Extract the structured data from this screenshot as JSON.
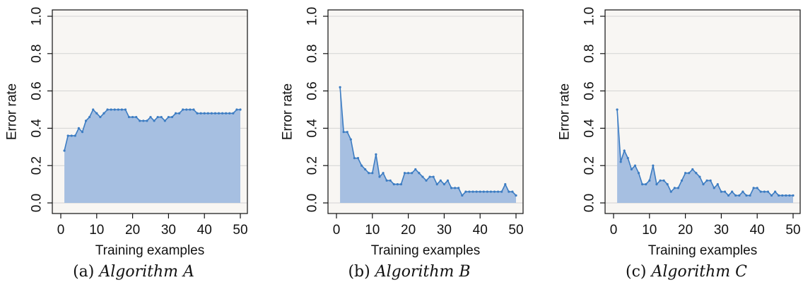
{
  "chart_data": [
    {
      "type": "area",
      "caption_prefix": "(a)",
      "caption_name": "Algorithm A",
      "xlabel": "Training examples",
      "ylabel": "Error rate",
      "xlim": [
        0,
        50
      ],
      "ylim": [
        0,
        1
      ],
      "xticks": [
        0,
        10,
        20,
        30,
        40,
        50
      ],
      "yticks": [
        0.0,
        0.2,
        0.4,
        0.6,
        0.8,
        1.0
      ],
      "grid": true,
      "colors": {
        "fill": "#a6bfe1",
        "line": "#3c7cc2",
        "background": "#f8f6f3"
      },
      "x": [
        1,
        2,
        3,
        4,
        5,
        6,
        7,
        8,
        9,
        10,
        11,
        12,
        13,
        14,
        15,
        16,
        17,
        18,
        19,
        20,
        21,
        22,
        23,
        24,
        25,
        26,
        27,
        28,
        29,
        30,
        31,
        32,
        33,
        34,
        35,
        36,
        37,
        38,
        39,
        40,
        41,
        42,
        43,
        44,
        45,
        46,
        47,
        48,
        49,
        50
      ],
      "y": [
        0.28,
        0.36,
        0.36,
        0.36,
        0.4,
        0.38,
        0.44,
        0.46,
        0.5,
        0.48,
        0.46,
        0.48,
        0.5,
        0.5,
        0.5,
        0.5,
        0.5,
        0.5,
        0.46,
        0.46,
        0.46,
        0.44,
        0.44,
        0.44,
        0.46,
        0.44,
        0.46,
        0.46,
        0.44,
        0.46,
        0.46,
        0.48,
        0.48,
        0.5,
        0.5,
        0.5,
        0.5,
        0.48,
        0.48,
        0.48,
        0.48,
        0.48,
        0.48,
        0.48,
        0.48,
        0.48,
        0.48,
        0.48,
        0.5,
        0.5
      ]
    },
    {
      "type": "area",
      "caption_prefix": "(b)",
      "caption_name": "Algorithm B",
      "xlabel": "Training examples",
      "ylabel": "Error rate",
      "xlim": [
        0,
        50
      ],
      "ylim": [
        0,
        1
      ],
      "xticks": [
        0,
        10,
        20,
        30,
        40,
        50
      ],
      "yticks": [
        0.0,
        0.2,
        0.4,
        0.6,
        0.8,
        1.0
      ],
      "grid": true,
      "colors": {
        "fill": "#a6bfe1",
        "line": "#3c7cc2",
        "background": "#f8f6f3"
      },
      "x": [
        1,
        2,
        3,
        4,
        5,
        6,
        7,
        8,
        9,
        10,
        11,
        12,
        13,
        14,
        15,
        16,
        17,
        18,
        19,
        20,
        21,
        22,
        23,
        24,
        25,
        26,
        27,
        28,
        29,
        30,
        31,
        32,
        33,
        34,
        35,
        36,
        37,
        38,
        39,
        40,
        41,
        42,
        43,
        44,
        45,
        46,
        47,
        48,
        49,
        50
      ],
      "y": [
        0.62,
        0.38,
        0.38,
        0.34,
        0.24,
        0.24,
        0.2,
        0.18,
        0.16,
        0.16,
        0.26,
        0.14,
        0.16,
        0.12,
        0.12,
        0.1,
        0.1,
        0.1,
        0.16,
        0.16,
        0.16,
        0.18,
        0.16,
        0.14,
        0.12,
        0.14,
        0.14,
        0.1,
        0.12,
        0.1,
        0.12,
        0.08,
        0.08,
        0.08,
        0.04,
        0.06,
        0.06,
        0.06,
        0.06,
        0.06,
        0.06,
        0.06,
        0.06,
        0.06,
        0.06,
        0.06,
        0.1,
        0.06,
        0.06,
        0.04
      ]
    },
    {
      "type": "area",
      "caption_prefix": "(c)",
      "caption_name": "Algorithm C",
      "xlabel": "Training examples",
      "ylabel": "Error rate",
      "xlim": [
        0,
        50
      ],
      "ylim": [
        0,
        1
      ],
      "xticks": [
        0,
        10,
        20,
        30,
        40,
        50
      ],
      "yticks": [
        0.0,
        0.2,
        0.4,
        0.6,
        0.8,
        1.0
      ],
      "grid": true,
      "colors": {
        "fill": "#a6bfe1",
        "line": "#3c7cc2",
        "background": "#f8f6f3"
      },
      "x": [
        1,
        2,
        3,
        4,
        5,
        6,
        7,
        8,
        9,
        10,
        11,
        12,
        13,
        14,
        15,
        16,
        17,
        18,
        19,
        20,
        21,
        22,
        23,
        24,
        25,
        26,
        27,
        28,
        29,
        30,
        31,
        32,
        33,
        34,
        35,
        36,
        37,
        38,
        39,
        40,
        41,
        42,
        43,
        44,
        45,
        46,
        47,
        48,
        49,
        50
      ],
      "y": [
        0.5,
        0.22,
        0.28,
        0.24,
        0.18,
        0.2,
        0.16,
        0.1,
        0.1,
        0.12,
        0.2,
        0.1,
        0.12,
        0.12,
        0.1,
        0.06,
        0.08,
        0.08,
        0.12,
        0.16,
        0.16,
        0.18,
        0.16,
        0.14,
        0.1,
        0.12,
        0.12,
        0.08,
        0.1,
        0.06,
        0.06,
        0.04,
        0.06,
        0.04,
        0.04,
        0.06,
        0.04,
        0.04,
        0.08,
        0.08,
        0.06,
        0.06,
        0.06,
        0.04,
        0.06,
        0.04,
        0.04,
        0.04,
        0.04,
        0.04
      ]
    }
  ]
}
